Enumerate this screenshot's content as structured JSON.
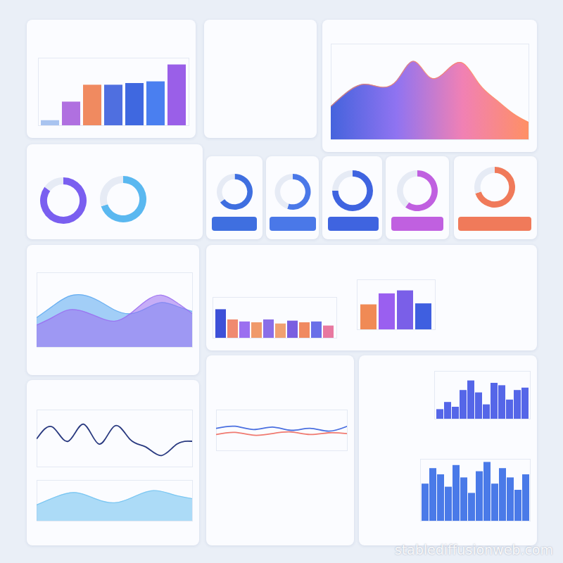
{
  "watermark": "stablediffusionweb.com",
  "chart_data": [
    {
      "type": "bar",
      "categories": [
        null,
        null,
        null,
        null,
        null,
        null,
        null
      ],
      "values": [
        6,
        28,
        48,
        48,
        50,
        52,
        72
      ],
      "colors": [
        "#a9c4f0",
        "#b070e0",
        "#f08a60",
        "#4f6fe0",
        "#3f68e0",
        "#4a7ff0",
        "#9a5fe8"
      ],
      "ylim": [
        0,
        80
      ],
      "tick_labels": false
    },
    {
      "type": "area",
      "categories": [
        null,
        null,
        null,
        null,
        null,
        null,
        null,
        null,
        null,
        null,
        null,
        null,
        null
      ],
      "series": [
        {
          "values": [
            35,
            50,
            58,
            55,
            62,
            82,
            65,
            72,
            80,
            58,
            42,
            28,
            18
          ],
          "colors": [
            "#3b5bdb",
            "#8a6cf0",
            "#f07ab0",
            "#ff8a5c"
          ]
        }
      ],
      "ylim": [
        0,
        100
      ],
      "tick_labels": false
    },
    {
      "type": "pie",
      "values": [
        85,
        15
      ],
      "colors": [
        "#7a5ff0",
        "#e6ebf5"
      ]
    },
    {
      "type": "pie",
      "values": [
        70,
        30
      ],
      "colors": [
        "#5ab8f0",
        "#e6ebf5"
      ]
    },
    {
      "type": "pie",
      "values": [
        65,
        35
      ],
      "colors": [
        "#3f6fe0",
        "#e6ebf5"
      ]
    },
    {
      "type": "pie",
      "values": [
        55,
        45
      ],
      "colors": [
        "#4a78e8",
        "#e6ebf5"
      ]
    },
    {
      "type": "pie",
      "values": [
        75,
        25
      ],
      "colors": [
        "#3f64e0",
        "#e6ebf5"
      ]
    },
    {
      "type": "pie",
      "values": [
        60,
        40
      ],
      "colors": [
        "#c060e0",
        "#e6ebf5"
      ]
    },
    {
      "type": "pie",
      "values": [
        70,
        30
      ],
      "colors": [
        "#f07a5a",
        "#e6ebf5"
      ]
    },
    {
      "type": "area",
      "categories": [
        null,
        null,
        null,
        null,
        null,
        null,
        null,
        null,
        null,
        null,
        null
      ],
      "series": [
        {
          "values": [
            40,
            55,
            68,
            70,
            62,
            50,
            45,
            52,
            60,
            55,
            48
          ],
          "color": "#5aa8f0"
        },
        {
          "values": [
            30,
            40,
            50,
            48,
            40,
            35,
            45,
            62,
            70,
            60,
            45
          ],
          "color": "#9a6cf0"
        }
      ],
      "ylim": [
        0,
        100
      ],
      "tick_labels": false
    },
    {
      "type": "bar",
      "categories": [
        null,
        null,
        null,
        null,
        null,
        null,
        null,
        null,
        null,
        null
      ],
      "values": [
        70,
        45,
        40,
        38,
        45,
        35,
        42,
        38,
        40,
        30
      ],
      "colors": [
        "#3d50d8",
        "#f08a70",
        "#9b6ff0",
        "#f09a6a",
        "#8a6ee8",
        "#f0a070",
        "#7a5fe0",
        "#f08a60",
        "#6a70e8",
        "#e878a0"
      ],
      "ylim": [
        0,
        100
      ],
      "tick_labels": false
    },
    {
      "type": "bar",
      "categories": [
        null,
        null,
        null,
        null
      ],
      "values": [
        50,
        72,
        78,
        52
      ],
      "colors": [
        "#f08a55",
        "#9a5ff0",
        "#7a5fe8",
        "#3f5fe0"
      ],
      "ylim": [
        0,
        100
      ],
      "tick_labels": false
    },
    {
      "type": "line",
      "categories": [
        null,
        null,
        null,
        null,
        null,
        null,
        null,
        null,
        null,
        null,
        null
      ],
      "series": [
        {
          "values": [
            50,
            70,
            45,
            75,
            40,
            72,
            48,
            35,
            20,
            40,
            45
          ],
          "color": "#2a3a80"
        }
      ],
      "ylim": [
        0,
        100
      ],
      "tick_labels": false
    },
    {
      "type": "area",
      "categories": [
        null,
        null,
        null,
        null,
        null,
        null,
        null,
        null,
        null
      ],
      "series": [
        {
          "values": [
            40,
            60,
            70,
            55,
            45,
            60,
            75,
            65,
            55
          ],
          "color": "#6cc0f0"
        }
      ],
      "ylim": [
        0,
        100
      ],
      "tick_labels": false
    },
    {
      "type": "line",
      "categories": [
        null,
        null,
        null,
        null,
        null,
        null,
        null,
        null
      ],
      "series": [
        {
          "values": [
            55,
            60,
            52,
            58,
            50,
            55,
            48,
            60
          ],
          "color": "#4a6fe0"
        },
        {
          "values": [
            40,
            45,
            38,
            42,
            46,
            40,
            44,
            42
          ],
          "color": "#f07a70"
        }
      ],
      "ylim": [
        0,
        100
      ],
      "tick_labels": false
    },
    {
      "type": "bar",
      "categories": [
        null,
        null,
        null,
        null,
        null,
        null,
        null,
        null,
        null,
        null,
        null,
        null
      ],
      "values": [
        20,
        35,
        25,
        60,
        80,
        55,
        30,
        75,
        70,
        40,
        60,
        65
      ],
      "color": "#5566e8",
      "ylim": [
        0,
        100
      ],
      "tick_labels": false
    },
    {
      "type": "bar",
      "categories": [
        null,
        null,
        null,
        null,
        null,
        null,
        null,
        null,
        null,
        null,
        null,
        null,
        null,
        null
      ],
      "values": [
        60,
        85,
        75,
        55,
        90,
        70,
        45,
        80,
        95,
        60,
        85,
        70,
        50,
        75
      ],
      "color": "#4a7ae8",
      "ylim": [
        0,
        100
      ],
      "tick_labels": false
    }
  ]
}
